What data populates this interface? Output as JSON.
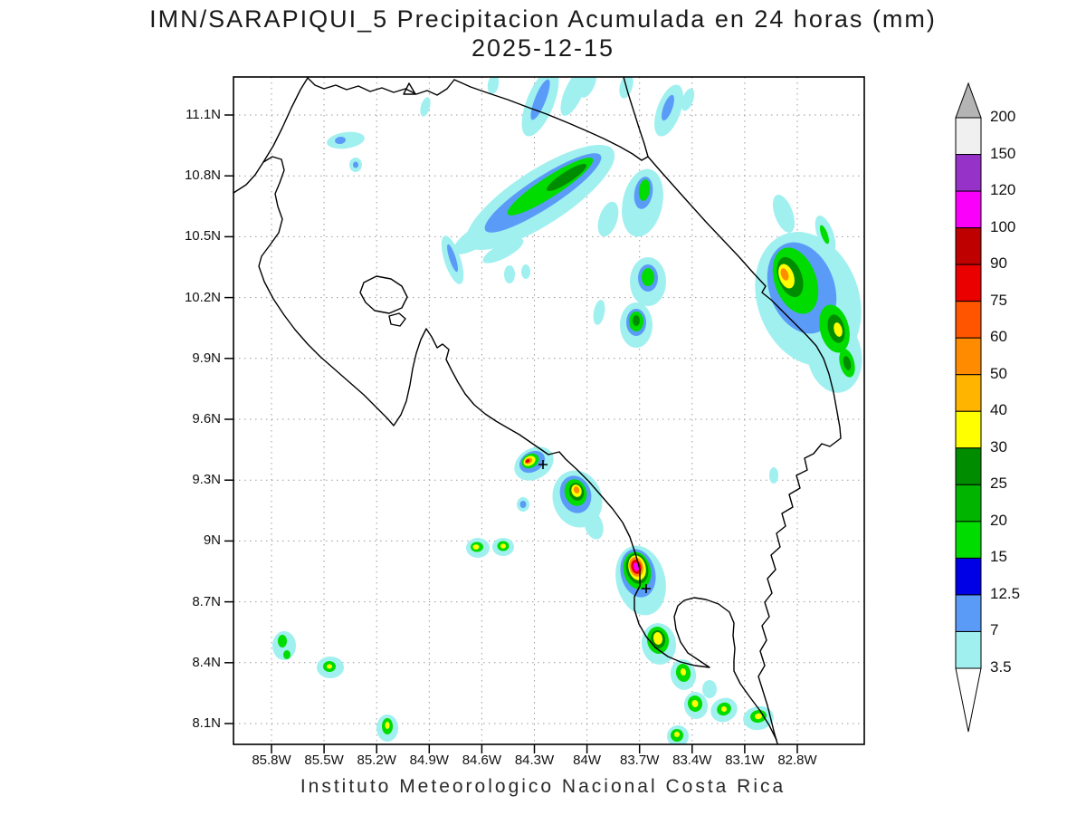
{
  "title": {
    "line1": "IMN/SARAPIQUI_5 Precipitacion Acumulada en 24 horas (mm)",
    "line2": "2025-12-15"
  },
  "footer": {
    "text": "Instituto Meteorologico Nacional Costa Rica"
  },
  "axes": {
    "lat_labels": [
      "11.1N",
      "10.8N",
      "10.5N",
      "10.2N",
      "9.9N",
      "9.6N",
      "9.3N",
      "9N",
      "8.7N",
      "8.4N",
      "8.1N"
    ],
    "lon_labels": [
      "85.8W",
      "85.5W",
      "85.2W",
      "84.9W",
      "84.6W",
      "84.3W",
      "84W",
      "83.7W",
      "83.4W",
      "83.1W",
      "82.8W"
    ]
  },
  "colorbar": {
    "units": "mm",
    "levels": [
      "200",
      "150",
      "120",
      "100",
      "90",
      "75",
      "60",
      "50",
      "40",
      "30",
      "25",
      "20",
      "15",
      "12.5",
      "7",
      "3.5"
    ],
    "cell_colors_top_to_bottom": [
      "#f0f0f0",
      "#9632c8",
      "#fa00fa",
      "#be0000",
      "#eb0000",
      "#ff5500",
      "#ff8c00",
      "#ffb400",
      "#ffff00",
      "#008c00",
      "#00b400",
      "#00dc00",
      "#0000e6",
      "#5b9bf8",
      "#a0f0f0"
    ],
    "top_cap_color": "#b4b4b4",
    "bottom_cap_color": "#ffffff"
  },
  "palette": {
    "c3_5": "#a0f0f0",
    "c7": "#5b9bf8",
    "c12_5": "#0000e6",
    "c15": "#00dc00",
    "c20": "#00b400",
    "c25": "#008c00",
    "c30": "#ffff00",
    "c40": "#ffb400",
    "c50": "#ff8c00",
    "c60": "#ff5500",
    "c75": "#eb0000",
    "c90": "#be0000",
    "c100": "#fa00fa",
    "c120": "#9632c8",
    "c150": "#f0f0f0"
  },
  "chart_data": {
    "type": "heatmap",
    "title": "IMN/SARAPIQUI_5 Precipitacion Acumulada en 24 horas (mm)",
    "subtitle": "2025-12-15",
    "lat_range": [
      "8.1N",
      "11.1N"
    ],
    "lon_range": [
      "85.8W",
      "82.8W"
    ],
    "scale_levels_mm": [
      3.5,
      7,
      12.5,
      15,
      20,
      25,
      30,
      40,
      50,
      60,
      75,
      90,
      100,
      120,
      150,
      200
    ],
    "grid": "dotted",
    "legend_position": "right"
  },
  "map": {
    "blobs": [
      [
        "c3_5",
        597,
        113,
        15,
        40,
        22
      ],
      [
        "c7",
        597,
        110,
        6,
        24,
        22
      ],
      [
        "c3_5",
        634,
        102,
        10,
        28,
        24
      ],
      [
        "c3_5",
        650,
        93,
        7,
        16,
        24
      ],
      [
        "c3_5",
        692,
        95,
        7,
        14,
        15
      ],
      [
        "c3_5",
        739,
        122,
        13,
        30,
        20
      ],
      [
        "c7",
        738,
        119,
        5,
        15,
        20
      ],
      [
        "c3_5",
        760,
        110,
        6,
        13,
        20
      ],
      [
        "c3_5",
        470,
        118,
        5,
        11,
        15
      ],
      [
        "c3_5",
        545,
        93,
        6,
        11,
        10
      ],
      [
        "c3_5",
        382,
        155,
        21,
        9,
        -8
      ],
      [
        "c7",
        376,
        155,
        6,
        4,
        -8
      ],
      [
        "c3_5",
        393,
        182,
        7,
        8,
        0
      ],
      [
        "c7",
        393,
        182,
        3,
        3.5,
        0
      ],
      [
        "c3_5",
        527,
        262,
        30,
        11,
        -33
      ],
      [
        "c3_5",
        556,
        277,
        25,
        8,
        -28
      ],
      [
        "c3_5",
        597,
        218,
        96,
        30,
        -33
      ],
      [
        "c7",
        600,
        213,
        76,
        17,
        -33
      ],
      [
        "c15",
        608,
        206,
        56,
        11,
        -33
      ],
      [
        "c25",
        626,
        196,
        26,
        6,
        -33
      ],
      [
        "c3_5",
        710,
        224,
        22,
        38,
        12
      ],
      [
        "c7",
        711,
        213,
        10,
        18,
        10
      ],
      [
        "c15",
        712,
        210,
        6,
        12,
        8
      ],
      [
        "c3_5",
        672,
        242,
        10,
        20,
        18
      ],
      [
        "c3_5",
        500,
        287,
        9,
        28,
        -18
      ],
      [
        "c7",
        500,
        285,
        3.5,
        16,
        -18
      ],
      [
        "c3_5",
        563,
        303,
        6,
        10,
        0
      ],
      [
        "c3_5",
        581,
        300,
        5,
        8,
        0
      ],
      [
        "c3_5",
        716,
        311,
        20,
        27,
        0
      ],
      [
        "c7",
        716,
        307,
        11,
        15,
        0
      ],
      [
        "c15",
        716,
        306,
        7,
        10,
        0
      ],
      [
        "c3_5",
        703,
        359,
        18,
        25,
        0
      ],
      [
        "c7",
        703,
        356,
        11,
        15,
        0
      ],
      [
        "c15",
        703,
        355,
        8,
        11,
        0
      ],
      [
        "c25",
        703,
        354,
        4,
        6,
        0
      ],
      [
        "c3_5",
        662,
        345,
        6,
        14,
        10
      ],
      [
        "c3_5",
        893,
        330,
        56,
        76,
        -20
      ],
      [
        "c3_5",
        922,
        392,
        30,
        42,
        -10
      ],
      [
        "c7",
        886,
        318,
        36,
        52,
        -20
      ],
      [
        "c15",
        879,
        310,
        23,
        38,
        -20
      ],
      [
        "c25",
        873,
        306,
        13,
        23,
        -20
      ],
      [
        "c30",
        869,
        305,
        8,
        14,
        -20
      ],
      [
        "c50",
        867,
        303,
        4,
        7,
        -20
      ],
      [
        "c15",
        922,
        363,
        16,
        27,
        -14
      ],
      [
        "c25",
        924,
        363,
        9,
        16,
        -14
      ],
      [
        "c30",
        926,
        364,
        4.5,
        8,
        -14
      ],
      [
        "c15",
        936,
        401,
        8,
        16,
        -14
      ],
      [
        "c25",
        936,
        401,
        4,
        8,
        -14
      ],
      [
        "c3_5",
        912,
        259,
        9,
        22,
        -20
      ],
      [
        "c15",
        911,
        259,
        3.5,
        11,
        -20
      ],
      [
        "c3_5",
        866,
        236,
        10,
        22,
        -20
      ],
      [
        "c3_5",
        855,
        525,
        5,
        9,
        0
      ],
      [
        "c3_5",
        590,
        512,
        23,
        17,
        -30
      ],
      [
        "c7",
        588,
        510,
        15,
        11,
        -30
      ],
      [
        "c15",
        586,
        509,
        10,
        7.5,
        -30
      ],
      [
        "c30",
        585,
        509,
        7,
        5,
        -30
      ],
      [
        "c50",
        584,
        509,
        4.5,
        3,
        -30
      ],
      [
        "c75",
        583,
        509,
        2.5,
        1.8,
        -30
      ],
      [
        "c3_5",
        638,
        551,
        27,
        32,
        -18
      ],
      [
        "c7",
        636,
        546,
        17,
        21,
        -18
      ],
      [
        "c15",
        636,
        544,
        12,
        15,
        -18
      ],
      [
        "c25",
        637,
        543,
        8,
        10,
        -18
      ],
      [
        "c30",
        637,
        542,
        5.5,
        7,
        -18
      ],
      [
        "c50",
        637,
        541,
        3,
        4,
        -18
      ],
      [
        "c3_5",
        656,
        580,
        10,
        16,
        -18
      ],
      [
        "c3_5",
        578,
        557,
        7,
        8,
        0
      ],
      [
        "c7",
        578,
        557,
        3.5,
        4,
        0
      ],
      [
        "c3_5",
        528,
        605,
        13,
        11,
        0
      ],
      [
        "c15",
        527,
        604,
        7,
        5.5,
        0
      ],
      [
        "c30",
        526,
        604,
        3.5,
        2.8,
        0
      ],
      [
        "c3_5",
        556,
        604,
        12,
        10,
        0
      ],
      [
        "c15",
        556,
        603,
        6.5,
        5.5,
        0
      ],
      [
        "c30",
        556,
        603,
        3,
        2.6,
        0
      ],
      [
        "c3_5",
        708,
        641,
        27,
        39,
        -14
      ],
      [
        "c7",
        705,
        633,
        19,
        27,
        -14
      ],
      [
        "c15",
        704,
        630,
        15,
        21,
        -14
      ],
      [
        "c25",
        704,
        628,
        12,
        17,
        -14
      ],
      [
        "c30",
        704,
        627,
        9.5,
        14,
        -14
      ],
      [
        "c50",
        703,
        626,
        7.5,
        11,
        -14
      ],
      [
        "c75",
        703,
        626,
        5.5,
        8,
        -14
      ],
      [
        "c100",
        703,
        626,
        3,
        5,
        -14
      ],
      [
        "c3_5",
        728,
        711,
        19,
        23,
        -8
      ],
      [
        "c15",
        727,
        707,
        12,
        15,
        -8
      ],
      [
        "c25",
        727,
        706,
        8,
        10,
        -8
      ],
      [
        "c30",
        727,
        705,
        5,
        7,
        -8
      ],
      [
        "c3_5",
        755,
        745,
        14,
        17,
        -10
      ],
      [
        "c15",
        755,
        743,
        8,
        10,
        -10
      ],
      [
        "c30",
        755,
        742,
        3,
        4,
        -10
      ],
      [
        "c3_5",
        769,
        779,
        13,
        15,
        -10
      ],
      [
        "c15",
        768,
        777,
        8,
        9,
        -10
      ],
      [
        "c30",
        768,
        777,
        3.5,
        4,
        -10
      ],
      [
        "c3_5",
        800,
        784,
        15,
        13,
        -24
      ],
      [
        "c15",
        800,
        783,
        8,
        7,
        -24
      ],
      [
        "c30",
        800,
        783,
        3,
        3,
        -24
      ],
      [
        "c3_5",
        838,
        793,
        17,
        13,
        -10
      ],
      [
        "c15",
        838,
        791,
        9,
        7,
        -10
      ],
      [
        "c30",
        838,
        791,
        4,
        3.2,
        -10
      ],
      [
        "c3_5",
        784,
        761,
        8,
        10,
        0
      ],
      [
        "c3_5",
        314,
        713,
        13,
        16,
        0
      ],
      [
        "c15",
        312,
        708,
        5,
        7,
        0
      ],
      [
        "c15",
        317,
        723,
        4,
        5,
        0
      ],
      [
        "c3_5",
        365,
        737,
        15,
        12,
        0
      ],
      [
        "c15",
        364,
        736,
        7,
        6,
        0
      ],
      [
        "c30",
        364,
        736,
        3,
        2.5,
        0
      ],
      [
        "c3_5",
        428,
        804,
        12,
        15,
        0
      ],
      [
        "c15",
        428,
        802,
        6,
        9,
        0
      ],
      [
        "c30",
        428,
        801,
        2.5,
        4,
        0
      ],
      [
        "c3_5",
        749,
        813,
        12,
        12,
        0
      ],
      [
        "c15",
        748,
        812,
        7,
        7,
        0
      ],
      [
        "c30",
        748,
        811,
        3,
        3,
        0
      ]
    ]
  }
}
